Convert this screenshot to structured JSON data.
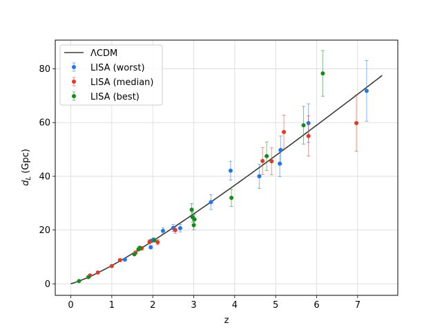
{
  "chart_data": {
    "type": "scatter",
    "xlabel": "z",
    "ylabel_main": "d",
    "ylabel_sub": "L",
    "ylabel_unit": " (Gpc)",
    "xlim": [
      -0.38,
      7.98
    ],
    "ylim": [
      -4.3,
      90.7
    ],
    "xticks": [
      0,
      1,
      2,
      3,
      4,
      5,
      6,
      7
    ],
    "yticks": [
      0,
      20,
      40,
      60,
      80
    ],
    "xtick_labels": [
      "0",
      "1",
      "2",
      "3",
      "4",
      "5",
      "6",
      "7"
    ],
    "ytick_labels": [
      "0",
      "20",
      "40",
      "60",
      "80"
    ],
    "grid": true,
    "legend_position": "upper-left",
    "model": {
      "name": "ΛCDM",
      "color": "#3a3a3a",
      "z_max": 7.6
    },
    "series": [
      {
        "name": "LISA (worst)",
        "color": "#1f77e8",
        "points": [
          {
            "x": 1.32,
            "y": 9.0,
            "err": 0.4
          },
          {
            "x": 1.95,
            "y": 13.6,
            "err": 0.6
          },
          {
            "x": 1.97,
            "y": 16.0,
            "err": 0.6
          },
          {
            "x": 2.02,
            "y": 16.4,
            "err": 0.7
          },
          {
            "x": 2.25,
            "y": 19.7,
            "err": 1.2
          },
          {
            "x": 2.5,
            "y": 20.8,
            "err": 1.3
          },
          {
            "x": 2.67,
            "y": 20.7,
            "err": 1.4
          },
          {
            "x": 3.42,
            "y": 30.4,
            "err": 2.8
          },
          {
            "x": 3.9,
            "y": 42.1,
            "err": 3.5
          },
          {
            "x": 4.6,
            "y": 40.0,
            "err": 4.5
          },
          {
            "x": 5.1,
            "y": 44.7,
            "err": 4.8
          },
          {
            "x": 5.12,
            "y": 49.8,
            "err": 5.2
          },
          {
            "x": 5.8,
            "y": 59.8,
            "err": 7.2
          },
          {
            "x": 7.22,
            "y": 71.8,
            "err": 11.3
          }
        ]
      },
      {
        "name": "LISA (median)",
        "color": "#e03a2a",
        "points": [
          {
            "x": 0.47,
            "y": 3.1,
            "err": 0.3
          },
          {
            "x": 0.66,
            "y": 4.2,
            "err": 0.3
          },
          {
            "x": 1.0,
            "y": 6.6,
            "err": 0.4
          },
          {
            "x": 1.2,
            "y": 8.8,
            "err": 0.5
          },
          {
            "x": 1.58,
            "y": 11.6,
            "err": 0.6
          },
          {
            "x": 1.73,
            "y": 13.2,
            "err": 0.7
          },
          {
            "x": 1.92,
            "y": 15.6,
            "err": 0.8
          },
          {
            "x": 2.12,
            "y": 15.5,
            "err": 1.0
          },
          {
            "x": 2.55,
            "y": 20.0,
            "err": 1.2
          },
          {
            "x": 4.68,
            "y": 45.7,
            "err": 5.0
          },
          {
            "x": 4.9,
            "y": 45.6,
            "err": 5.0
          },
          {
            "x": 5.2,
            "y": 56.5,
            "err": 6.3
          },
          {
            "x": 5.8,
            "y": 55.0,
            "err": 7.5
          },
          {
            "x": 6.97,
            "y": 59.8,
            "err": 10.5
          }
        ]
      },
      {
        "name": "LISA (best)",
        "color": "#138c1a",
        "points": [
          {
            "x": 0.2,
            "y": 1.0,
            "err": 0.2
          },
          {
            "x": 0.43,
            "y": 2.5,
            "err": 0.2
          },
          {
            "x": 1.55,
            "y": 11.0,
            "err": 0.5
          },
          {
            "x": 1.65,
            "y": 12.8,
            "err": 0.5
          },
          {
            "x": 1.68,
            "y": 13.4,
            "err": 0.5
          },
          {
            "x": 2.04,
            "y": 16.2,
            "err": 0.6
          },
          {
            "x": 2.95,
            "y": 27.6,
            "err": 2.2
          },
          {
            "x": 2.97,
            "y": 24.8,
            "err": 1.9
          },
          {
            "x": 3.0,
            "y": 21.8,
            "err": 1.7
          },
          {
            "x": 3.02,
            "y": 24.0,
            "err": 1.8
          },
          {
            "x": 3.92,
            "y": 32.0,
            "err": 3.2
          },
          {
            "x": 4.78,
            "y": 47.5,
            "err": 5.3
          },
          {
            "x": 5.68,
            "y": 59.0,
            "err": 7.0
          },
          {
            "x": 6.15,
            "y": 78.3,
            "err": 8.5
          }
        ]
      }
    ]
  }
}
